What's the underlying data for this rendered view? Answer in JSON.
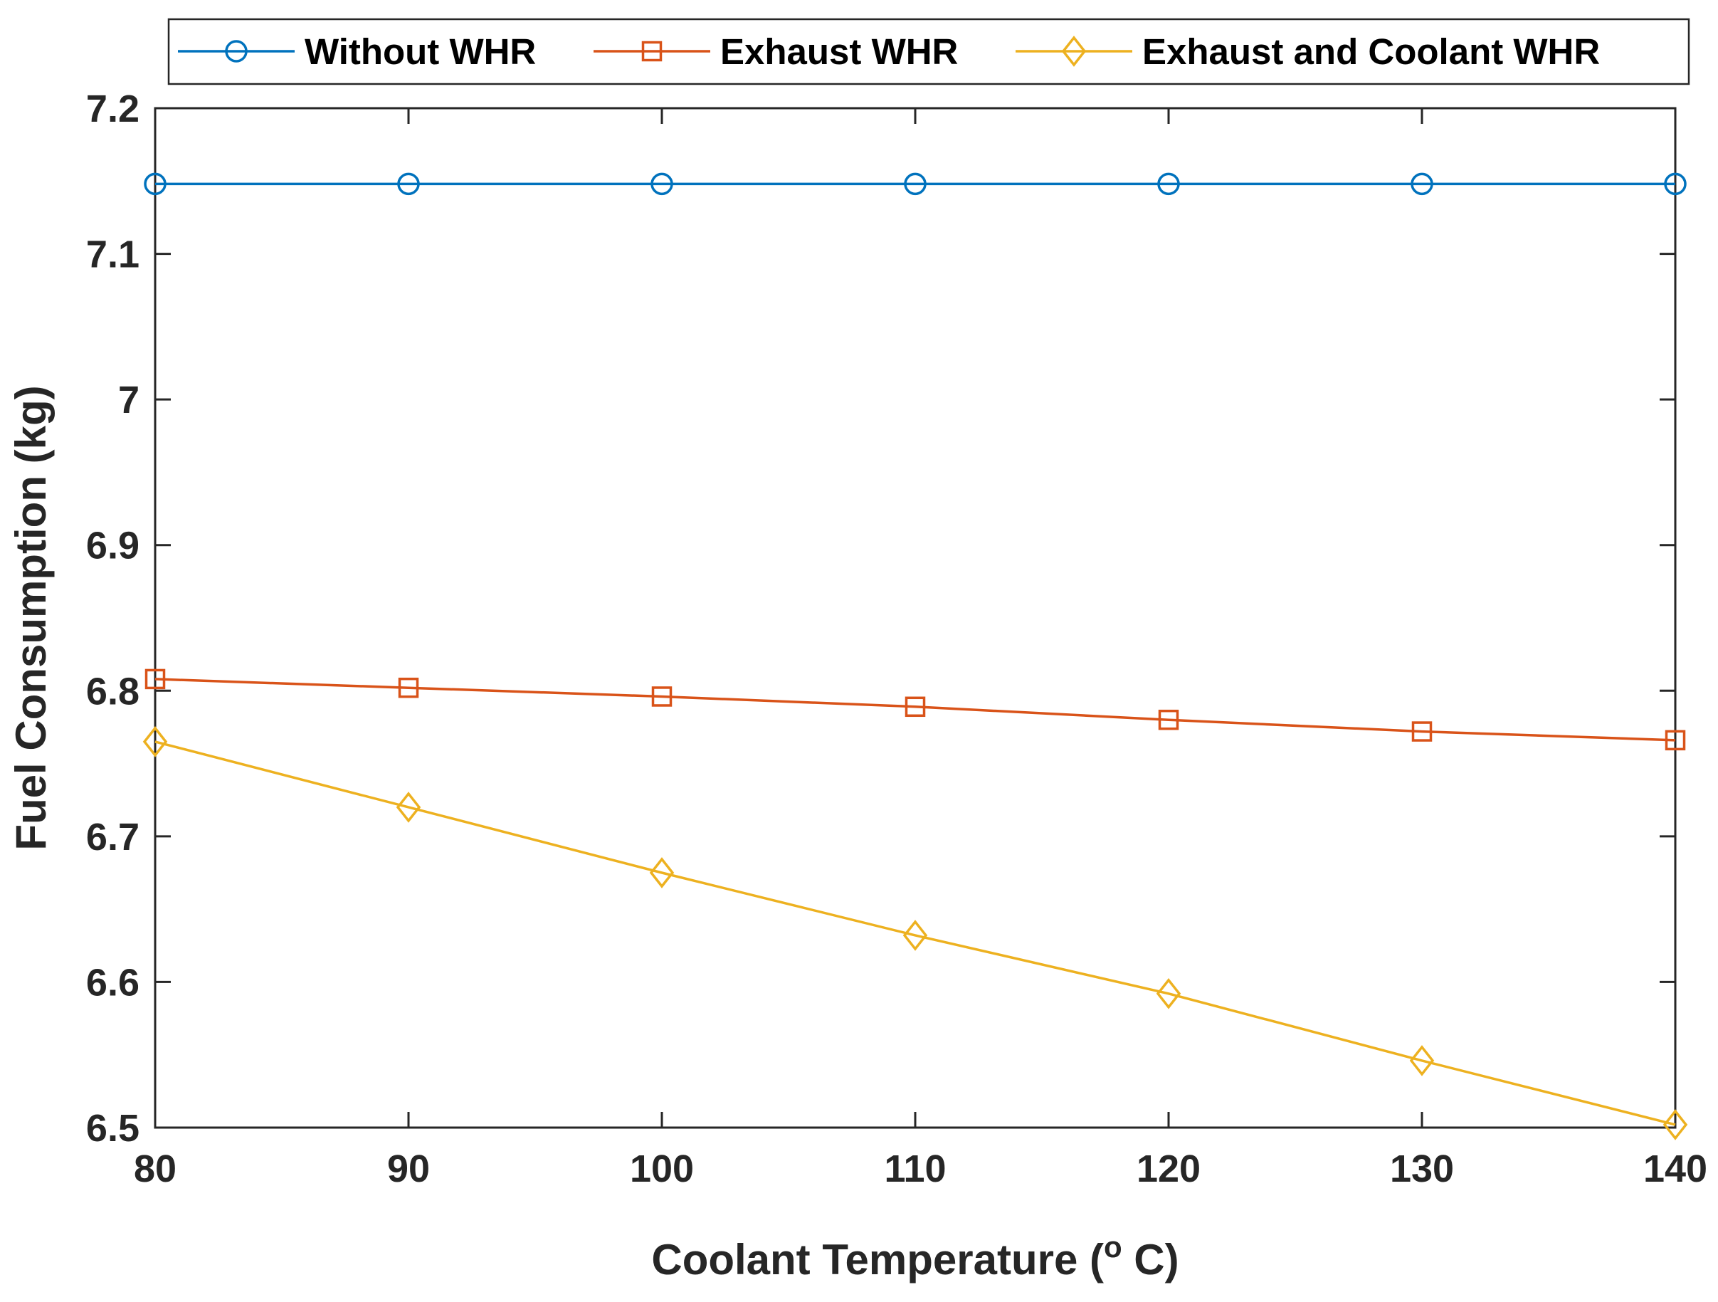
{
  "chart_data": {
    "type": "line",
    "title": "",
    "xlabel_prefix": "Coolant Temperature (",
    "xlabel_sup": "o",
    "xlabel_suffix": " C)",
    "ylabel": "Fuel Consumption (kg)",
    "x": [
      80,
      90,
      100,
      110,
      120,
      130,
      140
    ],
    "xlim": [
      80,
      140
    ],
    "ylim": [
      6.5,
      7.2
    ],
    "xticks": [
      "80",
      "90",
      "100",
      "110",
      "120",
      "130",
      "140"
    ],
    "yticks": [
      "6.5",
      "6.6",
      "6.7",
      "6.8",
      "6.9",
      "7",
      "7.1",
      "7.2"
    ],
    "ytick_values": [
      6.5,
      6.6,
      6.7,
      6.8,
      6.9,
      7.0,
      7.1,
      7.2
    ],
    "grid": false,
    "legend_position": "top (outside, horizontal)",
    "series": [
      {
        "name": "Without WHR",
        "color": "#0072BD",
        "marker": "circle",
        "values": [
          7.148,
          7.148,
          7.148,
          7.148,
          7.148,
          7.148,
          7.148
        ]
      },
      {
        "name": "Exhaust WHR",
        "color": "#D95319",
        "marker": "square",
        "values": [
          6.808,
          6.802,
          6.796,
          6.789,
          6.78,
          6.772,
          6.766
        ]
      },
      {
        "name": "Exhaust and Coolant WHR",
        "color": "#EDB120",
        "marker": "diamond",
        "values": [
          6.765,
          6.72,
          6.675,
          6.632,
          6.592,
          6.546,
          6.502
        ]
      }
    ]
  }
}
